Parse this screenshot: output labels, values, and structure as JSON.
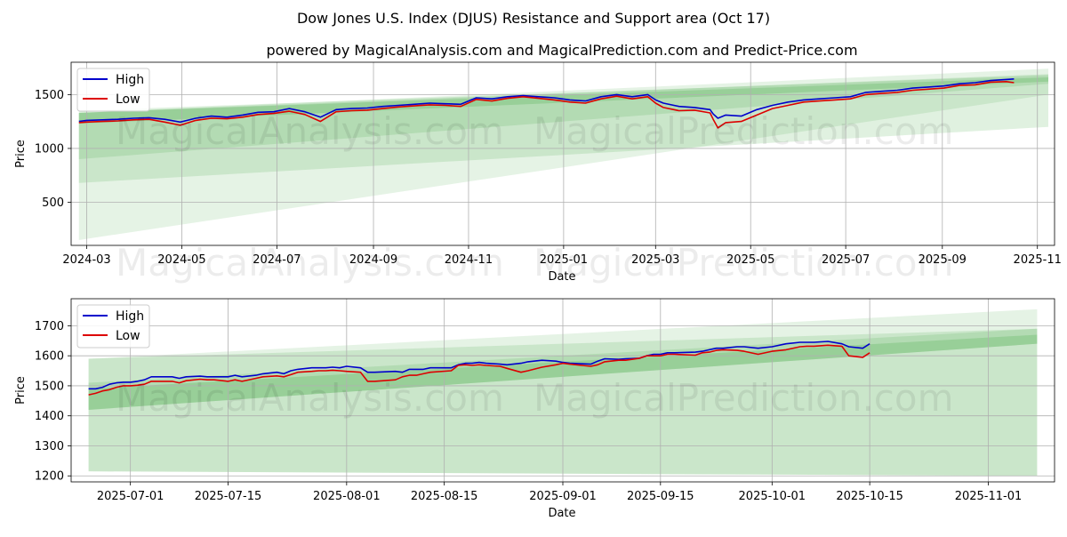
{
  "title": "Dow Jones U.S. Index (DJUS) Resistance and Support area (Oct 17)",
  "subtitle": "powered by MagicalAnalysis.com and MagicalPrediction.com and Predict-Price.com",
  "watermarks": [
    "MagicalAnalysis.com",
    "MagicalPrediction.com"
  ],
  "colors": {
    "high": "#0000cc",
    "low": "#dd0000",
    "band": "#2ca02c",
    "grid": "#b0b0b0"
  },
  "chart_data": [
    {
      "type": "line",
      "xlabel": "Date",
      "ylabel": "Price",
      "grid": true,
      "legend": "top-left",
      "x_unit": "days since 2024-01-01",
      "xlim": [
        50,
        681
      ],
      "ylim": [
        100,
        1800
      ],
      "x_ticks": [
        {
          "pos": 60,
          "label": "2024-03"
        },
        {
          "pos": 121,
          "label": "2024-05"
        },
        {
          "pos": 182,
          "label": "2024-07"
        },
        {
          "pos": 244,
          "label": "2024-09"
        },
        {
          "pos": 305,
          "label": "2024-11"
        },
        {
          "pos": 366,
          "label": "2025-01"
        },
        {
          "pos": 425,
          "label": "2025-03"
        },
        {
          "pos": 486,
          "label": "2025-05"
        },
        {
          "pos": 547,
          "label": "2025-07"
        },
        {
          "pos": 609,
          "label": "2025-09"
        },
        {
          "pos": 670,
          "label": "2025-11"
        }
      ],
      "y_ticks": [
        500,
        1000,
        1500
      ],
      "bands": [
        {
          "x0": 55,
          "x1": 677,
          "y0_low": 150,
          "y0_high": 1330,
          "y1_low": 1500,
          "y1_high": 1740,
          "opacity": 0.12
        },
        {
          "x0": 55,
          "x1": 677,
          "y0_low": 680,
          "y0_high": 1330,
          "y1_low": 1200,
          "y1_high": 1690,
          "opacity": 0.15
        },
        {
          "x0": 55,
          "x1": 677,
          "y0_low": 900,
          "y0_high": 1350,
          "y1_low": 1600,
          "y1_high": 1680,
          "opacity": 0.15
        },
        {
          "x0": 55,
          "x1": 677,
          "y0_low": 1230,
          "y0_high": 1330,
          "y1_low": 1620,
          "y1_high": 1660,
          "opacity": 0.2
        }
      ],
      "series": [
        {
          "name": "High",
          "x": [
            55,
            60,
            70,
            80,
            90,
            100,
            110,
            120,
            130,
            140,
            150,
            160,
            170,
            180,
            190,
            200,
            210,
            220,
            230,
            240,
            250,
            260,
            270,
            280,
            290,
            300,
            310,
            320,
            330,
            340,
            350,
            360,
            365,
            370,
            380,
            390,
            400,
            410,
            420,
            425,
            430,
            440,
            450,
            460,
            462,
            465,
            470,
            480,
            490,
            500,
            510,
            520,
            530,
            540,
            550,
            560,
            570,
            580,
            590,
            600,
            610,
            620,
            630,
            640,
            650,
            655
          ],
          "y": [
            1250,
            1260,
            1265,
            1270,
            1280,
            1285,
            1270,
            1245,
            1280,
            1300,
            1290,
            1310,
            1335,
            1340,
            1370,
            1340,
            1290,
            1360,
            1370,
            1375,
            1390,
            1400,
            1410,
            1420,
            1415,
            1410,
            1470,
            1460,
            1480,
            1490,
            1480,
            1470,
            1460,
            1450,
            1440,
            1480,
            1500,
            1480,
            1500,
            1450,
            1420,
            1390,
            1380,
            1360,
            1320,
            1280,
            1310,
            1300,
            1360,
            1400,
            1430,
            1450,
            1460,
            1470,
            1480,
            1520,
            1530,
            1540,
            1560,
            1570,
            1580,
            1600,
            1610,
            1630,
            1640,
            1645
          ]
        },
        {
          "name": "Low",
          "x": [
            55,
            60,
            70,
            80,
            90,
            100,
            110,
            120,
            130,
            140,
            150,
            160,
            170,
            180,
            190,
            200,
            210,
            220,
            230,
            240,
            250,
            260,
            270,
            280,
            290,
            300,
            310,
            320,
            330,
            340,
            350,
            360,
            365,
            370,
            380,
            390,
            400,
            410,
            420,
            425,
            430,
            440,
            450,
            460,
            462,
            465,
            470,
            480,
            490,
            500,
            510,
            520,
            530,
            540,
            550,
            560,
            570,
            580,
            590,
            600,
            610,
            620,
            630,
            640,
            650,
            655
          ],
          "y": [
            1240,
            1245,
            1250,
            1255,
            1265,
            1270,
            1245,
            1215,
            1260,
            1280,
            1275,
            1290,
            1315,
            1325,
            1345,
            1315,
            1250,
            1340,
            1350,
            1355,
            1370,
            1385,
            1395,
            1405,
            1400,
            1390,
            1455,
            1440,
            1465,
            1480,
            1465,
            1450,
            1440,
            1430,
            1420,
            1460,
            1485,
            1460,
            1480,
            1420,
            1380,
            1350,
            1355,
            1330,
            1270,
            1190,
            1240,
            1250,
            1310,
            1370,
            1400,
            1430,
            1440,
            1450,
            1460,
            1500,
            1510,
            1520,
            1540,
            1550,
            1560,
            1585,
            1590,
            1615,
            1620,
            1610
          ]
        }
      ]
    },
    {
      "type": "line",
      "xlabel": "Date",
      "ylabel": "Price",
      "grid": true,
      "legend": "top-left",
      "x_unit": "days since 2025-06-01",
      "xlim": [
        21.5,
        162.5
      ],
      "ylim": [
        1180,
        1790
      ],
      "x_ticks": [
        {
          "pos": 30,
          "label": "2025-07-01"
        },
        {
          "pos": 44,
          "label": "2025-07-15"
        },
        {
          "pos": 61,
          "label": "2025-08-01"
        },
        {
          "pos": 75,
          "label": "2025-08-15"
        },
        {
          "pos": 92,
          "label": "2025-09-01"
        },
        {
          "pos": 106,
          "label": "2025-09-15"
        },
        {
          "pos": 122,
          "label": "2025-10-01"
        },
        {
          "pos": 136,
          "label": "2025-10-15"
        },
        {
          "pos": 153,
          "label": "2025-11-01"
        }
      ],
      "y_ticks": [
        1200,
        1300,
        1400,
        1500,
        1600,
        1700
      ],
      "bands": [
        {
          "x0": 24,
          "x1": 160,
          "y0_low": 1215,
          "y0_high": 1590,
          "y1_low": 1200,
          "y1_high": 1755,
          "opacity": 0.12
        },
        {
          "x0": 24,
          "x1": 160,
          "y0_low": 1215,
          "y0_high": 1590,
          "y1_low": 1200,
          "y1_high": 1690,
          "opacity": 0.15
        },
        {
          "x0": 24,
          "x1": 160,
          "y0_low": 1420,
          "y0_high": 1510,
          "y1_low": 1640,
          "y1_high": 1690,
          "opacity": 0.15
        },
        {
          "x0": 24,
          "x1": 160,
          "y0_low": 1420,
          "y0_high": 1490,
          "y1_low": 1640,
          "y1_high": 1670,
          "opacity": 0.2
        }
      ],
      "series": [
        {
          "name": "High",
          "x": [
            24,
            25,
            26,
            27,
            28,
            29,
            30,
            31,
            32,
            33,
            35,
            36,
            37,
            38,
            40,
            41,
            42,
            44,
            45,
            46,
            48,
            49,
            51,
            52,
            53,
            54,
            56,
            57,
            58,
            59,
            60,
            61,
            63,
            64,
            65,
            68,
            69,
            70,
            71,
            72,
            73,
            76,
            77,
            78,
            79,
            80,
            81,
            83,
            84,
            86,
            87,
            89,
            91,
            92,
            93,
            96,
            97,
            98,
            100,
            101,
            103,
            104,
            105,
            106,
            107,
            108,
            111,
            112,
            113,
            114,
            115,
            117,
            118,
            120,
            122,
            124,
            126,
            127,
            128,
            130,
            132,
            133,
            135,
            136
          ],
          "y": [
            1490,
            1490,
            1495,
            1505,
            1510,
            1512,
            1512,
            1515,
            1520,
            1530,
            1530,
            1530,
            1525,
            1530,
            1532,
            1530,
            1530,
            1530,
            1535,
            1530,
            1535,
            1540,
            1545,
            1540,
            1550,
            1555,
            1560,
            1560,
            1560,
            1562,
            1560,
            1565,
            1560,
            1545,
            1545,
            1548,
            1545,
            1555,
            1555,
            1555,
            1560,
            1560,
            1570,
            1575,
            1575,
            1578,
            1575,
            1572,
            1570,
            1575,
            1580,
            1585,
            1582,
            1578,
            1575,
            1572,
            1582,
            1590,
            1588,
            1590,
            1592,
            1600,
            1605,
            1605,
            1610,
            1610,
            1612,
            1615,
            1620,
            1625,
            1625,
            1630,
            1630,
            1625,
            1630,
            1640,
            1645,
            1645,
            1645,
            1648,
            1640,
            1630,
            1625,
            1640
          ]
        },
        {
          "name": "Low",
          "x": [
            24,
            25,
            26,
            27,
            28,
            29,
            30,
            31,
            32,
            33,
            35,
            36,
            37,
            38,
            40,
            41,
            42,
            44,
            45,
            46,
            48,
            49,
            51,
            52,
            53,
            54,
            56,
            57,
            58,
            59,
            60,
            61,
            63,
            64,
            65,
            68,
            69,
            70,
            71,
            72,
            73,
            76,
            77,
            78,
            79,
            80,
            81,
            83,
            84,
            86,
            87,
            89,
            91,
            92,
            93,
            96,
            97,
            98,
            100,
            101,
            103,
            104,
            105,
            106,
            107,
            108,
            111,
            112,
            113,
            114,
            115,
            117,
            118,
            120,
            122,
            124,
            126,
            127,
            128,
            130,
            132,
            133,
            135,
            136
          ],
          "y": [
            1470,
            1475,
            1483,
            1487,
            1495,
            1500,
            1500,
            1502,
            1505,
            1515,
            1515,
            1515,
            1510,
            1517,
            1522,
            1520,
            1520,
            1515,
            1520,
            1515,
            1525,
            1530,
            1533,
            1530,
            1537,
            1545,
            1548,
            1550,
            1550,
            1552,
            1550,
            1548,
            1545,
            1515,
            1515,
            1520,
            1530,
            1535,
            1535,
            1540,
            1545,
            1550,
            1568,
            1570,
            1568,
            1570,
            1568,
            1565,
            1558,
            1545,
            1550,
            1562,
            1570,
            1575,
            1572,
            1565,
            1570,
            1580,
            1585,
            1585,
            1592,
            1600,
            1600,
            1600,
            1605,
            1605,
            1602,
            1610,
            1612,
            1618,
            1620,
            1618,
            1615,
            1605,
            1615,
            1620,
            1630,
            1632,
            1632,
            1635,
            1632,
            1600,
            1595,
            1610
          ]
        }
      ]
    }
  ]
}
